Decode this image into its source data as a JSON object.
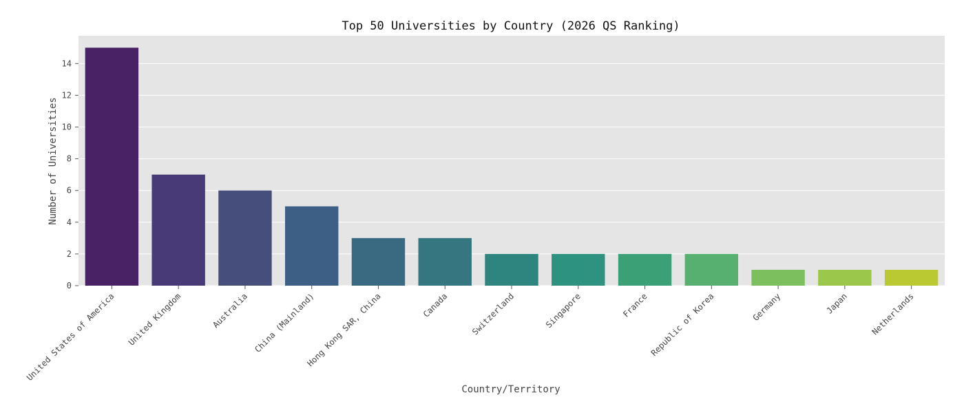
{
  "chart_data": {
    "type": "bar",
    "title": "Top 50 Universities by Country (2026 QS Ranking)",
    "xlabel": "Country/Territory",
    "ylabel": "Number of Universities",
    "categories": [
      "United States of America",
      "United Kingdom",
      "Australia",
      "China (Mainland)",
      "Hong Kong SAR, China",
      "Canada",
      "Switzerland",
      "Singapore",
      "France",
      "Republic of Korea",
      "Germany",
      "Japan",
      "Netherlands"
    ],
    "values": [
      15,
      7,
      6,
      5,
      3,
      3,
      2,
      2,
      2,
      2,
      1,
      1,
      1
    ],
    "colors": [
      "#482264",
      "#473a76",
      "#464f7c",
      "#3d5e85",
      "#3a6a82",
      "#357681",
      "#2e847e",
      "#2d9280",
      "#3ba076",
      "#57b06f",
      "#7bbf5f",
      "#9bc84b",
      "#bac932"
    ],
    "ylim": [
      0,
      15.75
    ],
    "yticks": [
      0,
      2,
      4,
      6,
      8,
      10,
      12,
      14
    ],
    "grid": true,
    "background": "#e5e5e5",
    "grid_color": "#ffffff"
  }
}
